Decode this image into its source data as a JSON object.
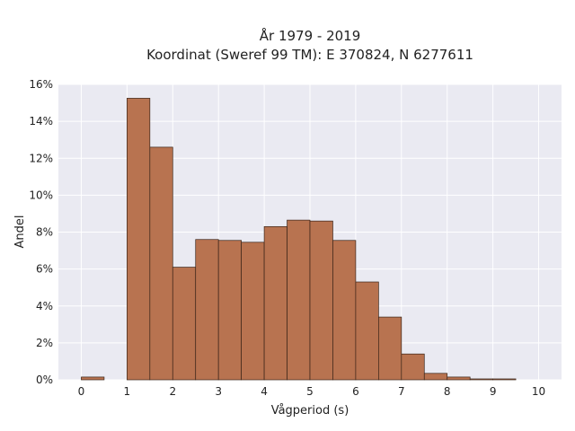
{
  "chart_data": {
    "type": "bar",
    "title_line1": "År 1979 - 2019",
    "title_line2": "Koordinat (Sweref 99 TM): E 370824, N 6277611",
    "xlabel": "Vågperiod (s)",
    "ylabel": "Andel",
    "xlim": [
      -0.5,
      10.5
    ],
    "ylim": [
      0,
      16
    ],
    "xticks": [
      0,
      1,
      2,
      3,
      4,
      5,
      6,
      7,
      8,
      9,
      10
    ],
    "xtick_labels": [
      "0",
      "1",
      "2",
      "3",
      "4",
      "5",
      "6",
      "7",
      "8",
      "9",
      "10"
    ],
    "yticks": [
      0,
      2,
      4,
      6,
      8,
      10,
      12,
      14,
      16
    ],
    "ytick_labels": [
      "0%",
      "2%",
      "4%",
      "6%",
      "8%",
      "10%",
      "12%",
      "14%",
      "16%"
    ],
    "bin_width": 0.5,
    "bins": [
      {
        "x0": 0.0,
        "value": 0.15
      },
      {
        "x0": 0.5,
        "value": 0.0
      },
      {
        "x0": 1.0,
        "value": 15.25
      },
      {
        "x0": 1.5,
        "value": 12.6
      },
      {
        "x0": 2.0,
        "value": 6.1
      },
      {
        "x0": 2.5,
        "value": 7.6
      },
      {
        "x0": 3.0,
        "value": 7.55
      },
      {
        "x0": 3.5,
        "value": 7.45
      },
      {
        "x0": 4.0,
        "value": 8.3
      },
      {
        "x0": 4.5,
        "value": 8.65
      },
      {
        "x0": 5.0,
        "value": 8.6
      },
      {
        "x0": 5.5,
        "value": 7.55
      },
      {
        "x0": 6.0,
        "value": 5.3
      },
      {
        "x0": 6.5,
        "value": 3.4
      },
      {
        "x0": 7.0,
        "value": 1.4
      },
      {
        "x0": 7.5,
        "value": 0.35
      },
      {
        "x0": 8.0,
        "value": 0.15
      },
      {
        "x0": 8.5,
        "value": 0.05
      },
      {
        "x0": 9.0,
        "value": 0.05
      }
    ],
    "grid": true,
    "colors": {
      "bar_fill": "#b87350",
      "bar_edge": "#3a2418",
      "plot_bg": "#eaeaf2",
      "grid": "#ffffff"
    }
  }
}
